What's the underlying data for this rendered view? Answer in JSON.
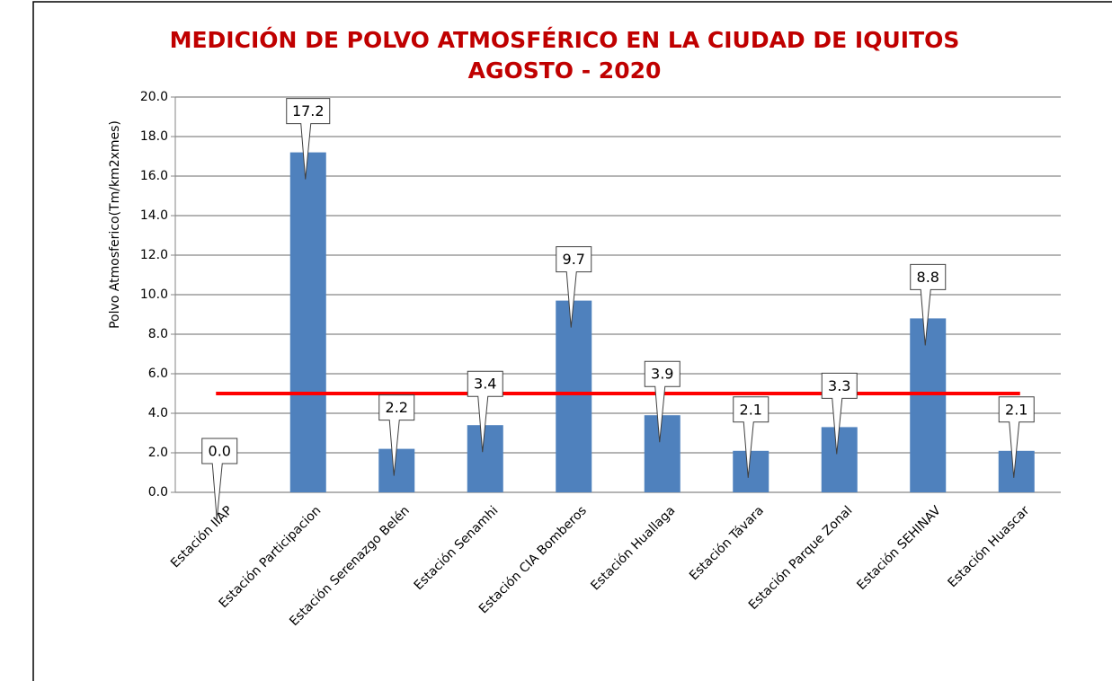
{
  "chart_data": {
    "type": "bar",
    "title": [
      "MEDICIÓN DE POLVO ATMOSFÉRICO EN LA CIUDAD DE IQUITOS",
      "AGOSTO - 2020"
    ],
    "y_label": "Polvo Atmosferico(Tm/km2xmes)",
    "categories": [
      "Estación IIAP",
      "Estación Participacion",
      "Estación Serenazgo Belén",
      "Estación Senamhi",
      "Estación CIA Bomberos",
      "Estación Huallaga",
      "Estación Távara",
      "Estación Parque Zonal",
      "Estación SEHINAV",
      "Estación Huascar"
    ],
    "values": [
      0,
      17.2,
      2.2,
      3.4,
      9.7,
      3.9,
      2.1,
      3.3,
      8.8,
      2.1
    ],
    "value_labels": [
      "0.0",
      "17.2",
      "2.2",
      "3.4",
      "9.7",
      "3.9",
      "2.1",
      "3.3",
      "8.8",
      "2.1"
    ],
    "color": "#4f81bd",
    "reference_line": {
      "value": 5,
      "color": "#ff0000"
    },
    "ylim": [
      0,
      20
    ],
    "yticks": [
      {
        "value": 0,
        "label": "0.0"
      },
      {
        "value": 2,
        "label": "2.0"
      },
      {
        "value": 4,
        "label": "4.0"
      },
      {
        "value": 6,
        "label": "6.0"
      },
      {
        "value": 8,
        "label": "8.0"
      },
      {
        "value": 10,
        "label": "10.0"
      },
      {
        "value": 12,
        "label": "12.0"
      },
      {
        "value": 14,
        "label": "14.0"
      },
      {
        "value": 16,
        "label": "16.0"
      },
      {
        "value": 18,
        "label": "18.0"
      },
      {
        "value": 20,
        "label": "20.0"
      }
    ],
    "grid": true
  }
}
